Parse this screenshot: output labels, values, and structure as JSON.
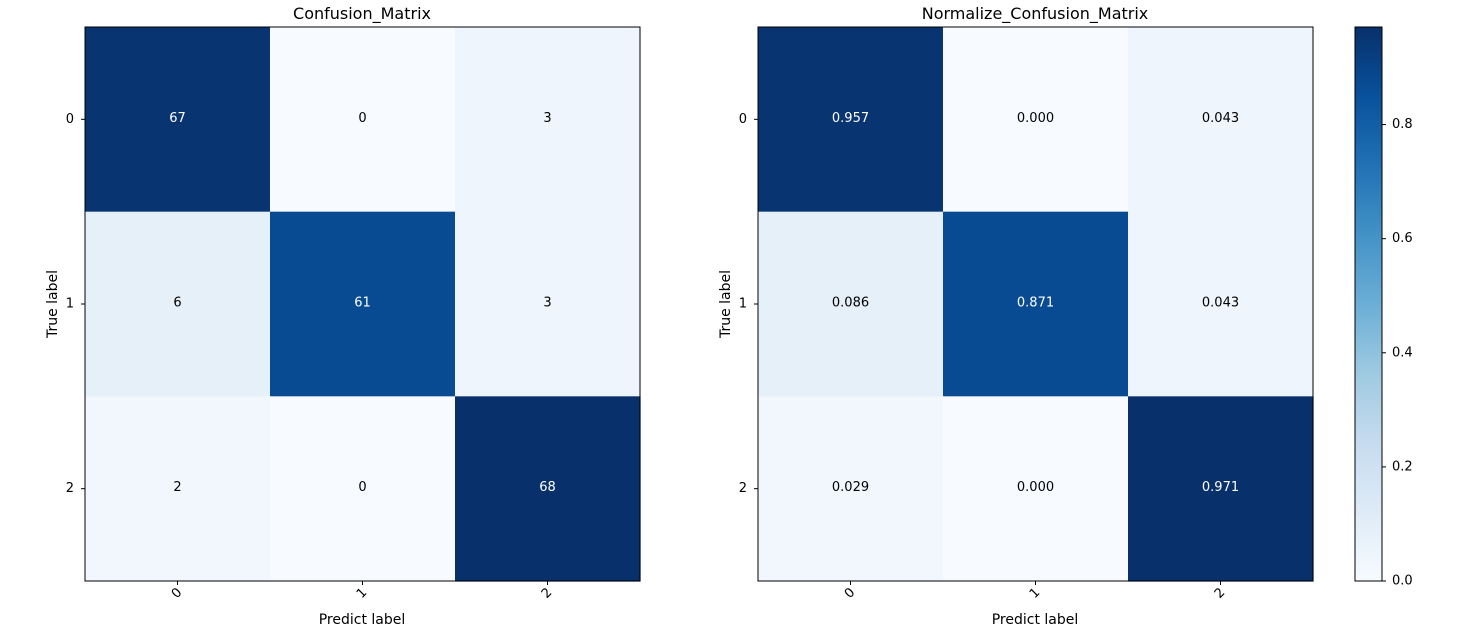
{
  "chart_data": [
    {
      "type": "heatmap",
      "title": "Confusion_Matrix",
      "xlabel": "Predict label",
      "ylabel": "True label",
      "x_categories": [
        "0",
        "1",
        "2"
      ],
      "y_categories": [
        "0",
        "1",
        "2"
      ],
      "values": [
        [
          67,
          0,
          3
        ],
        [
          6,
          61,
          3
        ],
        [
          2,
          0,
          68
        ]
      ],
      "cell_labels": [
        [
          "67",
          "0",
          "3"
        ],
        [
          "6",
          "61",
          "3"
        ],
        [
          "2",
          "0",
          "68"
        ]
      ],
      "colormap": "Blues",
      "color_range": [
        0,
        68
      ]
    },
    {
      "type": "heatmap",
      "title": "Normalize_Confusion_Matrix",
      "xlabel": "Predict label",
      "ylabel": "True label",
      "x_categories": [
        "0",
        "1",
        "2"
      ],
      "y_categories": [
        "0",
        "1",
        "2"
      ],
      "values": [
        [
          0.957,
          0.0,
          0.043
        ],
        [
          0.086,
          0.871,
          0.043
        ],
        [
          0.029,
          0.0,
          0.971
        ]
      ],
      "cell_labels": [
        [
          "0.957",
          "0.000",
          "0.043"
        ],
        [
          "0.086",
          "0.871",
          "0.043"
        ],
        [
          "0.029",
          "0.000",
          "0.971"
        ]
      ],
      "colormap": "Blues",
      "color_range": [
        0,
        0.971
      ],
      "colorbar": {
        "ticks": [
          0.0,
          0.2,
          0.4,
          0.6,
          0.8
        ],
        "tick_labels": [
          "0.0",
          "0.2",
          "0.4",
          "0.6",
          "0.8"
        ]
      }
    }
  ],
  "colors": {
    "blues_low": "#f7fbff",
    "blues_high": "#08306b"
  }
}
